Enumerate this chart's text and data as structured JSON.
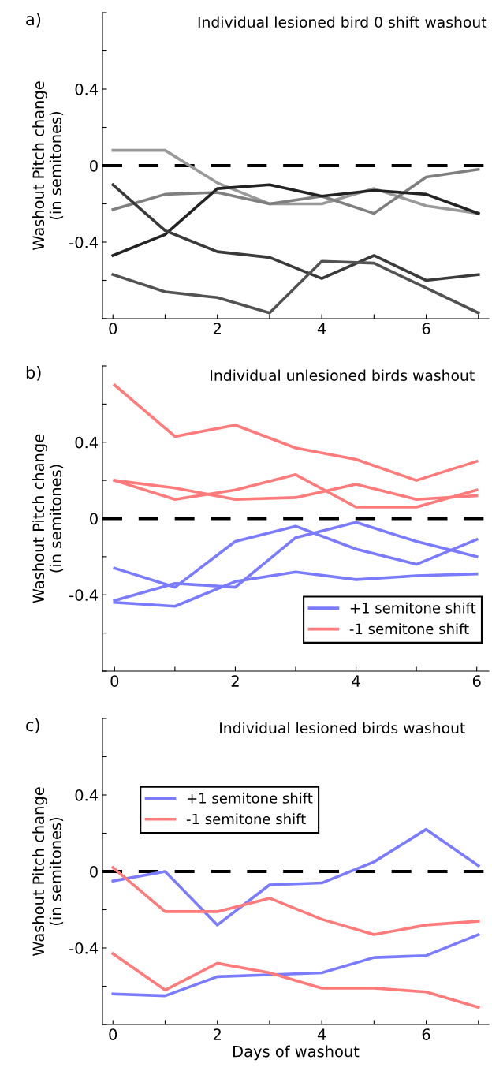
{
  "chart_data": [
    {
      "type": "line",
      "title": "Individual lesioned bird 0 shift washout",
      "ylabel": "Washout Pitch change\n(in semitones)",
      "annotations": [
        "a)"
      ],
      "x": [
        0,
        1,
        2,
        3,
        4,
        5,
        6,
        7
      ],
      "xlim": [
        -0.2,
        7.2
      ],
      "ylim": [
        -0.8,
        0.8
      ],
      "xticks": [
        0,
        {
          "value": 1,
          "label": null
        },
        2,
        {
          "value": 3,
          "label": null
        },
        4,
        {
          "value": 5,
          "label": null
        },
        6,
        {
          "value": 7,
          "label": null
        }
      ],
      "yticks": [
        {
          "value": -0.8,
          "label": null
        },
        {
          "value": -0.6,
          "label": null
        },
        -0.4,
        {
          "value": -0.2,
          "label": null
        },
        0,
        {
          "value": 0.2,
          "label": null
        },
        0.4,
        {
          "value": 0.6,
          "label": null
        },
        {
          "value": 0.8,
          "label": null
        }
      ],
      "grid": false,
      "legend": false,
      "line_style": "solid",
      "marker": "none",
      "ref_lines": [
        {
          "axis": "y",
          "value": 0,
          "color": "#000000",
          "line_style": "dashed"
        }
      ],
      "series": [
        {
          "color": "#999999",
          "values": [
            0.08,
            0.08,
            -0.09,
            -0.2,
            -0.2,
            -0.12,
            -0.21,
            -0.25
          ]
        },
        {
          "color": "#7f7f7f",
          "values": [
            -0.23,
            -0.15,
            -0.14,
            -0.2,
            -0.16,
            -0.25,
            -0.06,
            -0.02
          ]
        },
        {
          "color": "#222222",
          "values": [
            -0.47,
            -0.36,
            -0.12,
            -0.1,
            -0.16,
            -0.13,
            -0.15,
            -0.25
          ]
        },
        {
          "color": "#3a3a3a",
          "values": [
            -0.1,
            -0.34,
            -0.45,
            -0.48,
            -0.59,
            -0.47,
            -0.6,
            -0.57
          ]
        },
        {
          "color": "#525252",
          "values": [
            -0.57,
            -0.66,
            -0.69,
            -0.77,
            -0.5,
            -0.51,
            -0.64,
            -0.77
          ]
        }
      ]
    },
    {
      "type": "line",
      "title": "Individual unlesioned birds washout",
      "ylabel": "Washout Pitch change\n(in semitones)",
      "annotations": [
        "b)"
      ],
      "x": [
        0,
        1,
        2,
        3,
        4,
        5,
        6
      ],
      "xlim": [
        -0.2,
        6.2
      ],
      "ylim": [
        -0.8,
        0.8
      ],
      "xticks": [
        0,
        {
          "value": 1,
          "label": null
        },
        2,
        {
          "value": 3,
          "label": null
        },
        4,
        {
          "value": 5,
          "label": null
        },
        6
      ],
      "yticks": [
        {
          "value": -0.8,
          "label": null
        },
        {
          "value": -0.6,
          "label": null
        },
        -0.4,
        {
          "value": -0.2,
          "label": null
        },
        0,
        {
          "value": 0.2,
          "label": null
        },
        0.4,
        {
          "value": 0.6,
          "label": null
        },
        {
          "value": 0.8,
          "label": null
        }
      ],
      "grid": false,
      "legend": "bottom right",
      "line_style": "solid",
      "marker": "none",
      "ref_lines": [
        {
          "axis": "y",
          "value": 0,
          "color": "#000000",
          "line_style": "dashed"
        }
      ],
      "series": [
        {
          "name": "+1 semitone shift",
          "color": "#7b7bff",
          "values": [
            -0.26,
            -0.36,
            -0.12,
            -0.04,
            -0.16,
            -0.24,
            -0.11
          ]
        },
        {
          "color": "#7b7bff",
          "values": [
            -0.43,
            -0.34,
            -0.36,
            -0.1,
            -0.02,
            -0.12,
            -0.2
          ]
        },
        {
          "color": "#7b7bff",
          "values": [
            -0.44,
            -0.46,
            -0.33,
            -0.28,
            -0.32,
            -0.3,
            -0.29
          ]
        },
        {
          "name": "-1 semitone shift",
          "color": "#ff7b7b",
          "values": [
            0.7,
            0.43,
            0.49,
            0.37,
            0.31,
            0.2,
            0.3
          ]
        },
        {
          "color": "#ff7b7b",
          "values": [
            0.2,
            0.16,
            0.1,
            0.11,
            0.18,
            0.1,
            0.12
          ]
        },
        {
          "color": "#ff7b7b",
          "values": [
            0.2,
            0.1,
            0.15,
            0.23,
            0.06,
            0.06,
            0.15
          ]
        }
      ]
    },
    {
      "type": "line",
      "title": "Individual lesioned birds washout",
      "xlabel": "Days of washout",
      "ylabel": "Washout Pitch change\n(in semitones)",
      "annotations": [
        "c)"
      ],
      "x": [
        0,
        1,
        2,
        3,
        4,
        5,
        6,
        7
      ],
      "xlim": [
        -0.2,
        7.2
      ],
      "ylim": [
        -0.8,
        0.8
      ],
      "xticks": [
        0,
        {
          "value": 1,
          "label": null
        },
        2,
        {
          "value": 3,
          "label": null
        },
        4,
        {
          "value": 5,
          "label": null
        },
        6,
        {
          "value": 7,
          "label": null
        }
      ],
      "yticks": [
        {
          "value": -0.8,
          "label": null
        },
        {
          "value": -0.6,
          "label": null
        },
        -0.4,
        {
          "value": -0.2,
          "label": null
        },
        0,
        {
          "value": 0.2,
          "label": null
        },
        0.4,
        {
          "value": 0.6,
          "label": null
        },
        {
          "value": 0.8,
          "label": null
        }
      ],
      "grid": false,
      "legend": "upper left",
      "line_style": "solid",
      "marker": "none",
      "ref_lines": [
        {
          "axis": "y",
          "value": 0,
          "color": "#000000",
          "line_style": "dashed"
        }
      ],
      "series": [
        {
          "name": "+1 semitone shift",
          "color": "#7b7bff",
          "values": [
            -0.05,
            0,
            -0.28,
            -0.07,
            -0.06,
            0.05,
            0.22,
            0.03
          ]
        },
        {
          "color": "#7b7bff",
          "values": [
            -0.64,
            -0.65,
            -0.55,
            -0.54,
            -0.53,
            -0.45,
            -0.44,
            -0.33
          ]
        },
        {
          "name": "-1 semitone shift",
          "color": "#ff7b7b",
          "values": [
            0.02,
            -0.21,
            -0.21,
            -0.14,
            -0.25,
            -0.33,
            -0.28,
            -0.26
          ]
        },
        {
          "color": "#ff7b7b",
          "values": [
            -0.43,
            -0.62,
            -0.48,
            -0.53,
            -0.61,
            -0.61,
            -0.63,
            -0.71
          ]
        }
      ]
    }
  ]
}
